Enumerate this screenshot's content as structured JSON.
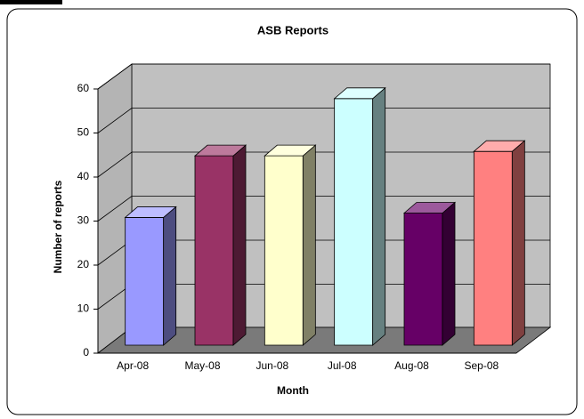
{
  "chart_data": {
    "type": "bar3d",
    "title": "ASB Reports",
    "categories": [
      "Apr-08",
      "May-08",
      "Jun-08",
      "Jul-08",
      "Aug-08",
      "Sep-08"
    ],
    "values": [
      29,
      43,
      43,
      56,
      30,
      44
    ],
    "colors": [
      "#9999ff",
      "#993366",
      "#ffffcc",
      "#ccffff",
      "#660066",
      "#ff8080"
    ],
    "ylim": [
      0,
      60
    ],
    "yticks": [
      0,
      10,
      20,
      30,
      40,
      50,
      60
    ],
    "grid": true,
    "y_label": "Number of reports",
    "x_label": "Month"
  }
}
